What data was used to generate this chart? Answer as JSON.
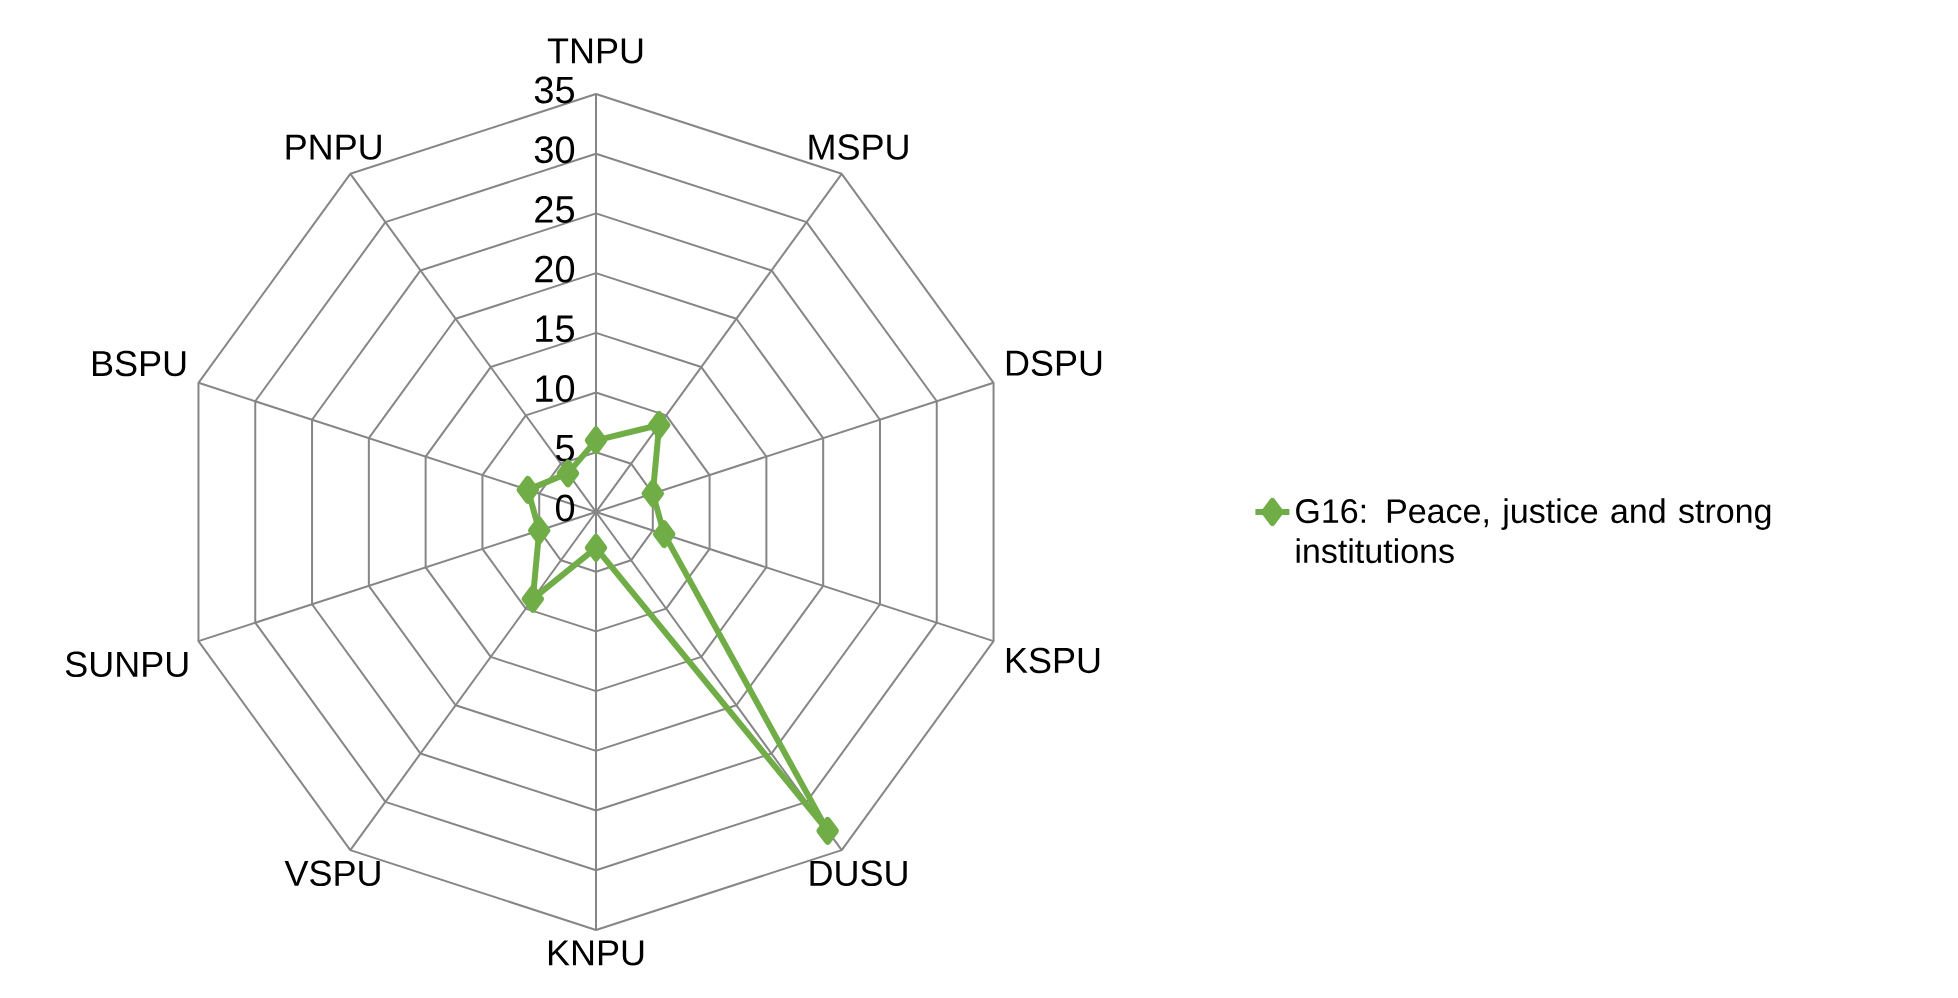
{
  "chart_data": {
    "type": "radar",
    "categories": [
      "TNPU",
      "MSPU",
      "DSPU",
      "KSPU",
      "DUSU",
      "KNPU",
      "VSPU",
      "SUNPU",
      "BSPU",
      "PNPU"
    ],
    "series": [
      {
        "name": "G16: Peace, justice and strong institutions",
        "color": "#70ad47",
        "values": [
          6,
          9,
          5,
          6,
          33,
          3,
          9,
          5,
          6,
          4
        ]
      }
    ],
    "ylim": [
      0,
      35
    ],
    "yticks": [
      0,
      5,
      10,
      15,
      20,
      25,
      30,
      35
    ],
    "grid": true,
    "legend": "right",
    "marker": "diamond"
  }
}
